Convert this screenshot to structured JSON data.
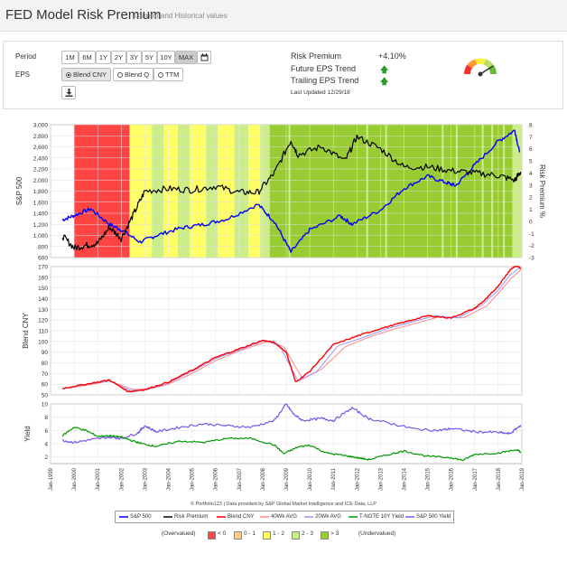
{
  "header": {
    "title": "FED Model Risk Premium",
    "subtitle": "Current and Historical values"
  },
  "controls": {
    "period_label": "Period",
    "periods": [
      "1M",
      "6M",
      "1Y",
      "2Y",
      "3Y",
      "5Y",
      "10Y",
      "MAX"
    ],
    "period_selected": "MAX",
    "eps_label": "EPS",
    "eps_options": [
      "Blend CNY",
      "Blend Q",
      "TTM"
    ],
    "eps_selected": "Blend CNY"
  },
  "summary": {
    "risk_premium_label": "Risk Premium",
    "risk_premium_value": "+4.10%",
    "future_eps_label": "Future EPS Trend",
    "trailing_eps_label": "Trailing EPS Trend",
    "last_updated": "Last Updated 12/29/18"
  },
  "colors": {
    "red": "#ff4444",
    "orange": "#ffcc88",
    "yellow": "#ffff66",
    "ltgreen": "#ccee88",
    "green": "#99cc33",
    "sp500": "#0000ff",
    "riskprem": "#000000",
    "blend": "#ff0000",
    "avg40": "#ff8888",
    "avg20": "#9999ff",
    "tnote": "#009900",
    "spyield": "#7755ee",
    "arrow_up": "#2a9d2a"
  },
  "chart_data": [
    {
      "type": "line",
      "ylabel": "S&P 500",
      "y2label": "Risk Premium %",
      "ylim": [
        600,
        3000
      ],
      "y2lim": [
        -3,
        8
      ],
      "yticks": [
        "600",
        "800",
        "1,000",
        "1,200",
        "1,400",
        "1,600",
        "1,800",
        "2,000",
        "2,200",
        "2,400",
        "2,600",
        "2,800",
        "3,000"
      ],
      "y2ticks": [
        "-3",
        "-2",
        "-1",
        "0",
        "1",
        "2",
        "3",
        "4",
        "5",
        "6",
        "7",
        "8"
      ],
      "bands": [
        {
          "from": 2000.0,
          "to": 2002.4,
          "zone": "<0"
        },
        {
          "from": 2002.4,
          "to": 2003.4,
          "zone": "1-2"
        },
        {
          "from": 2003.4,
          "to": 2008.3,
          "zone": "1-2 / 2-3"
        },
        {
          "from": 2008.3,
          "to": 2018.6,
          "zone": ">3"
        },
        {
          "from": 2018.6,
          "to": 2019.0,
          "zone": "2-3 / >3"
        }
      ],
      "series": [
        {
          "name": "S&P 500",
          "axis": "left",
          "x": [
            1999.5,
            2000.0,
            2000.7,
            2001.5,
            2002.0,
            2002.8,
            2003.5,
            2004.5,
            2005.5,
            2006.5,
            2007.8,
            2008.5,
            2009.2,
            2010.0,
            2011.3,
            2011.8,
            2013.0,
            2014.0,
            2015.0,
            2015.8,
            2016.2,
            2017.0,
            2018.0,
            2018.7,
            2018.9
          ],
          "values": [
            1280,
            1360,
            1480,
            1200,
            1100,
            880,
            1000,
            1130,
            1200,
            1300,
            1560,
            1250,
            700,
            1100,
            1350,
            1200,
            1460,
            1850,
            2070,
            1950,
            1900,
            2270,
            2700,
            2900,
            2500
          ]
        },
        {
          "name": "Risk Premium",
          "axis": "right",
          "x": [
            1999.5,
            2000.0,
            2000.5,
            2001.0,
            2001.5,
            2002.0,
            2002.5,
            2003.0,
            2004.0,
            2005.0,
            2006.0,
            2007.0,
            2007.8,
            2008.5,
            2009.2,
            2009.5,
            2010.5,
            2011.5,
            2012.0,
            2013.0,
            2014.0,
            2015.0,
            2016.0,
            2017.0,
            2018.0,
            2018.7,
            2018.95
          ],
          "values": [
            -1.2,
            -2.2,
            -2.0,
            -1.8,
            -0.5,
            -1.4,
            0.5,
            2.5,
            2.7,
            2.6,
            2.9,
            2.4,
            2.4,
            4.0,
            6.7,
            5.5,
            6.2,
            5.0,
            7.0,
            6.0,
            4.5,
            4.5,
            4.2,
            4.0,
            3.8,
            3.4,
            4.1
          ]
        }
      ]
    },
    {
      "type": "line",
      "ylabel": "Blend CNY",
      "ylim": [
        50,
        170
      ],
      "yticks": [
        "50",
        "60",
        "70",
        "80",
        "90",
        "100",
        "110",
        "120",
        "130",
        "140",
        "150",
        "160",
        "170"
      ],
      "series": [
        {
          "name": "Blend CNY",
          "x": [
            1999.5,
            2000.5,
            2001.5,
            2002.3,
            2003.0,
            2004.0,
            2005.0,
            2006.0,
            2007.0,
            2008.0,
            2008.5,
            2009.0,
            2009.4,
            2010.0,
            2011.0,
            2012.0,
            2013.0,
            2014.0,
            2015.0,
            2016.0,
            2017.0,
            2017.5,
            2018.0,
            2018.5,
            2018.8,
            2018.95
          ],
          "values": [
            56,
            60,
            64,
            53,
            55,
            62,
            73,
            85,
            93,
            101,
            99,
            90,
            62,
            72,
            97,
            105,
            112,
            118,
            124,
            122,
            131,
            140,
            152,
            167,
            172,
            168
          ]
        },
        {
          "name": "40Wk AVG",
          "x": [
            1999.5,
            2000.5,
            2001.5,
            2002.5,
            2003.3,
            2004.0,
            2005.0,
            2006.0,
            2007.0,
            2008.2,
            2008.9,
            2009.7,
            2010.5,
            2011.5,
            2012.5,
            2013.5,
            2014.5,
            2015.5,
            2016.5,
            2017.5,
            2018.0,
            2018.5,
            2018.95
          ],
          "values": [
            56,
            59,
            63,
            55,
            56,
            60,
            70,
            82,
            91,
            100,
            95,
            65,
            74,
            95,
            104,
            111,
            117,
            123,
            122,
            133,
            145,
            158,
            167
          ]
        },
        {
          "name": "20Wk AVG",
          "x": [
            1999.5,
            2000.5,
            2001.5,
            2002.4,
            2003.1,
            2004.0,
            2005.0,
            2006.0,
            2007.0,
            2008.1,
            2008.7,
            2009.5,
            2010.3,
            2011.2,
            2012.3,
            2013.3,
            2014.3,
            2015.3,
            2016.3,
            2017.3,
            2018.0,
            2018.5,
            2018.95
          ],
          "values": [
            56,
            60,
            63,
            54,
            55,
            61,
            72,
            84,
            92,
            101,
            97,
            63,
            72,
            96,
            104,
            112,
            118,
            124,
            122,
            134,
            148,
            162,
            170
          ]
        }
      ]
    },
    {
      "type": "line",
      "ylabel": "Yield",
      "ylim": [
        1,
        10
      ],
      "yticks": [
        "2",
        "4",
        "6",
        "8",
        "10"
      ],
      "xticks": [
        "Jan-1999",
        "Jan-2000",
        "Jan-2001",
        "Jan-2002",
        "Jan-2003",
        "Jan-2004",
        "Jan-2005",
        "Jan-2006",
        "Jan-2007",
        "Jan-2008",
        "Jan-2009",
        "Jan-2010",
        "Jan-2011",
        "Jan-2012",
        "Jan-2013",
        "Jan-2014",
        "Jan-2015",
        "Jan-2016",
        "Jan-2017",
        "Jan-2018",
        "Jan-2019"
      ],
      "series": [
        {
          "name": "T-NOTE 10Y Yield",
          "x": [
            1999.5,
            2000.0,
            2000.5,
            2001.0,
            2001.5,
            2002.0,
            2002.5,
            2003.0,
            2003.5,
            2004.5,
            2005.5,
            2006.5,
            2007.5,
            2008.5,
            2008.9,
            2009.5,
            2010.0,
            2010.7,
            2011.5,
            2012.0,
            2012.5,
            2013.5,
            2014.0,
            2015.0,
            2016.0,
            2016.5,
            2017.0,
            2018.0,
            2018.8,
            2018.95
          ],
          "values": [
            5.2,
            6.5,
            6.0,
            5.1,
            5.2,
            5.0,
            4.4,
            3.9,
            3.6,
            4.4,
            4.2,
            4.8,
            4.8,
            3.8,
            2.5,
            3.5,
            3.8,
            2.6,
            2.2,
            1.9,
            1.6,
            2.5,
            2.9,
            2.1,
            1.9,
            1.5,
            2.4,
            2.6,
            3.1,
            2.7
          ]
        },
        {
          "name": "S&P 500 Yield",
          "x": [
            1999.5,
            2000.0,
            2000.7,
            2001.5,
            2002.0,
            2002.7,
            2003.0,
            2003.5,
            2004.5,
            2005.5,
            2006.5,
            2007.5,
            2008.5,
            2009.0,
            2009.3,
            2009.7,
            2010.5,
            2011.0,
            2011.8,
            2012.5,
            2013.5,
            2014.5,
            2015.5,
            2016.0,
            2017.0,
            2018.0,
            2018.5,
            2018.95
          ],
          "values": [
            4.5,
            4.2,
            4.6,
            5.0,
            4.8,
            5.6,
            6.7,
            5.8,
            6.5,
            7.0,
            6.7,
            6.5,
            7.5,
            10.0,
            8.5,
            7.5,
            7.8,
            7.5,
            9.4,
            7.8,
            7.0,
            6.2,
            6.0,
            6.3,
            5.8,
            5.7,
            5.5,
            6.8
          ]
        }
      ]
    }
  ],
  "footer": {
    "credit": "© Portfolio123 | Data provided by S&P Global Market Intelligence and ICE Data, LLP"
  },
  "legend": {
    "items": [
      "S&P 500",
      "Risk Premium",
      "Blend CNY",
      "40Wk AVG",
      "20Wk AVG",
      "T-NOTE 10Y Yield",
      "S&P 500 Yield"
    ]
  },
  "zones": {
    "left": "(Overvalued)",
    "right": "(Undervalued)",
    "items": [
      {
        "label": "< 0",
        "color": "#ff4444"
      },
      {
        "label": "0 - 1",
        "color": "#ffcc88"
      },
      {
        "label": "1 - 2",
        "color": "#ffff66"
      },
      {
        "label": "2 - 3",
        "color": "#ccee88"
      },
      {
        "label": "> 3",
        "color": "#99cc33"
      }
    ]
  }
}
